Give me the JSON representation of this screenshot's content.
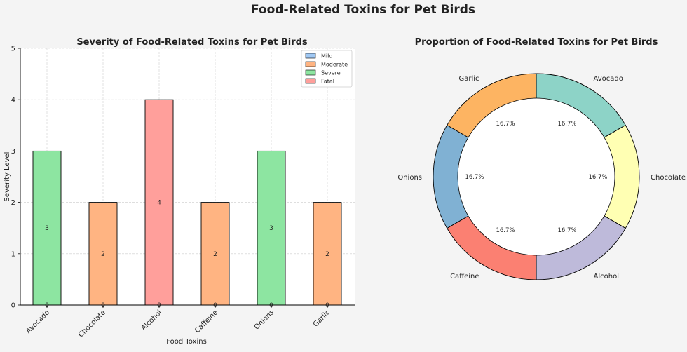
{
  "figure": {
    "suptitle": "Food-Related Toxins for Pet Birds"
  },
  "chart_data": [
    {
      "type": "bar",
      "title": "Severity of Food-Related Toxins for Pet Birds",
      "xlabel": "Food Toxins",
      "ylabel": "Severity Level",
      "ylim": [
        0,
        5
      ],
      "yticks": [
        0,
        1,
        2,
        3,
        4,
        5
      ],
      "grid": true,
      "categories": [
        "Avocado",
        "Chocolate",
        "Alcohol",
        "Caffeine",
        "Onions",
        "Garlic"
      ],
      "values": [
        3,
        2,
        4,
        2,
        3,
        2
      ],
      "severity": [
        "Severe",
        "Moderate",
        "Fatal",
        "Moderate",
        "Severe",
        "Moderate"
      ],
      "legend": {
        "placement": "top-right",
        "entries": [
          {
            "name": "Mild",
            "color": "#a1c9f4"
          },
          {
            "name": "Moderate",
            "color": "#ffb482"
          },
          {
            "name": "Severe",
            "color": "#8de5a1"
          },
          {
            "name": "Fatal",
            "color": "#ff9f9b"
          }
        ]
      },
      "base_label": "0"
    },
    {
      "type": "pie",
      "donut": true,
      "title": "Proportion of Food-Related Toxins for Pet Birds",
      "slices": [
        {
          "label": "Avocado",
          "value": 16.7,
          "pct": "16.7%",
          "color": "#8dd3c7"
        },
        {
          "label": "Chocolate",
          "value": 16.7,
          "pct": "16.7%",
          "color": "#ffffb3"
        },
        {
          "label": "Alcohol",
          "value": 16.7,
          "pct": "16.7%",
          "color": "#bebada"
        },
        {
          "label": "Caffeine",
          "value": 16.7,
          "pct": "16.7%",
          "color": "#fb8072"
        },
        {
          "label": "Onions",
          "value": 16.7,
          "pct": "16.7%",
          "color": "#80b1d3"
        },
        {
          "label": "Garlic",
          "value": 16.7,
          "pct": "16.7%",
          "color": "#fdb462"
        }
      ]
    }
  ]
}
